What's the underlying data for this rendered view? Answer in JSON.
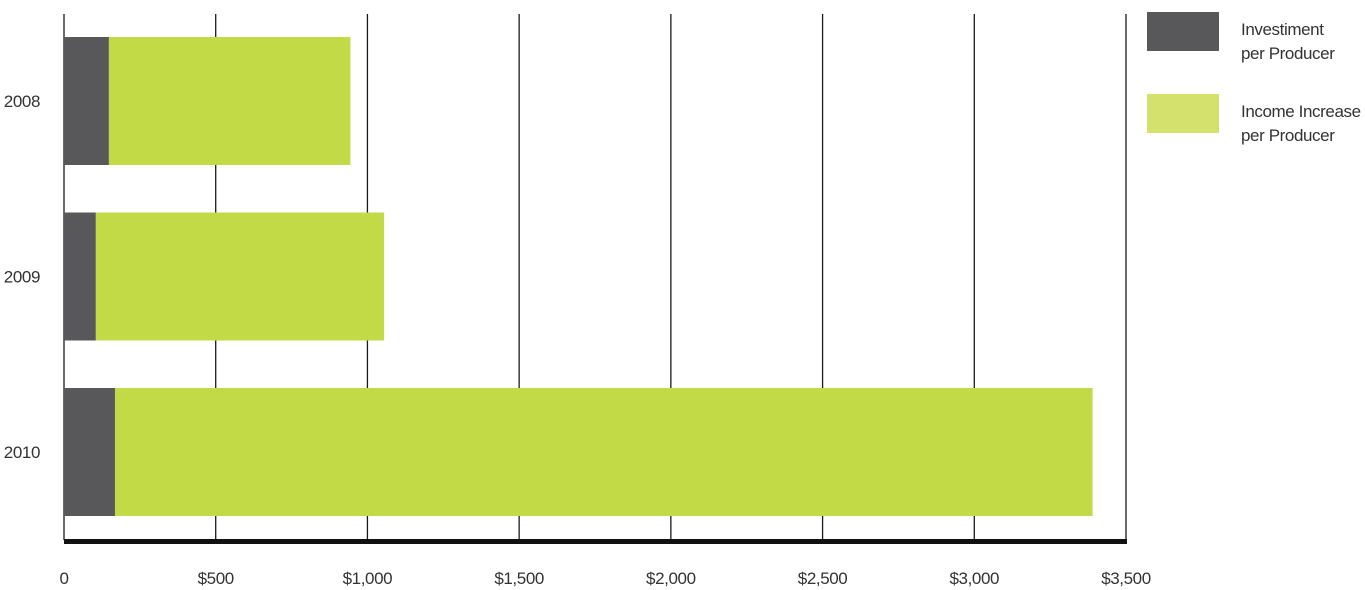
{
  "chart_data": {
    "type": "bar",
    "orientation": "horizontal",
    "stacked": true,
    "title": "",
    "xlabel": "",
    "ylabel": "",
    "categories": [
      "2008",
      "2009",
      "2010"
    ],
    "series": [
      {
        "name": "Investiment per Producer",
        "label_lines": [
          "Investiment",
          "per Producer"
        ],
        "color": "#58585a",
        "values": [
          148,
          105,
          168
        ]
      },
      {
        "name": "Income Increase per Producer",
        "label_lines": [
          "Income Increase",
          "per Producer"
        ],
        "color": "#c2da46",
        "values": [
          796,
          950,
          3222
        ]
      }
    ],
    "legend_swatch_colors": [
      "#58585a",
      "#d4e16d"
    ],
    "x_ticks": [
      {
        "value": 0,
        "label": "0"
      },
      {
        "value": 500,
        "label": "$500"
      },
      {
        "value": 1000,
        "label": "$1,000"
      },
      {
        "value": 1500,
        "label": "$1,500"
      },
      {
        "value": 2000,
        "label": "$2,000"
      },
      {
        "value": 2500,
        "label": "$2,500"
      },
      {
        "value": 3000,
        "label": "$3,000"
      },
      {
        "value": 3500,
        "label": "$3,500"
      }
    ],
    "xlim": [
      0,
      3500
    ],
    "grid": true,
    "legend_position": "top-right"
  }
}
